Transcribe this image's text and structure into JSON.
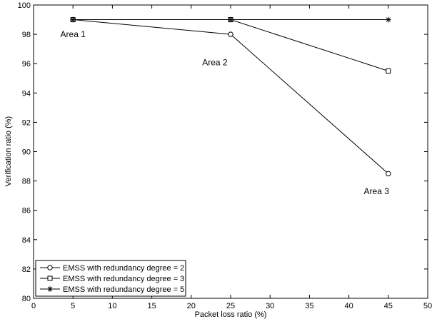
{
  "chart_data": {
    "type": "line",
    "xlabel": "Packet loss ratio (%)",
    "ylabel": "Verification ratio (%)",
    "xlim": [
      0,
      50
    ],
    "ylim": [
      80,
      100
    ],
    "xticks": [
      0,
      5,
      10,
      15,
      20,
      25,
      30,
      35,
      40,
      45,
      50
    ],
    "yticks": [
      80,
      82,
      84,
      86,
      88,
      90,
      92,
      94,
      96,
      98,
      100
    ],
    "grid": false,
    "legend_position": "bottom-left",
    "series": [
      {
        "name": "EMSS with redundancy degree = 2",
        "marker": "circle",
        "x": [
          5,
          25,
          45
        ],
        "y": [
          99,
          98,
          88.5
        ]
      },
      {
        "name": "EMSS with redundancy degree = 3",
        "marker": "square",
        "x": [
          5,
          25,
          45
        ],
        "y": [
          99,
          99,
          95.5
        ]
      },
      {
        "name": "EMSS with redundancy degree = 5",
        "marker": "star",
        "x": [
          5,
          25,
          45
        ],
        "y": [
          99,
          99,
          99
        ]
      }
    ],
    "annotations": [
      {
        "text": "Area 1",
        "x": 5,
        "y": 97.8
      },
      {
        "text": "Area 2",
        "x": 23,
        "y": 95.9
      },
      {
        "text": "Area 3",
        "x": 43.5,
        "y": 87.1
      }
    ]
  }
}
